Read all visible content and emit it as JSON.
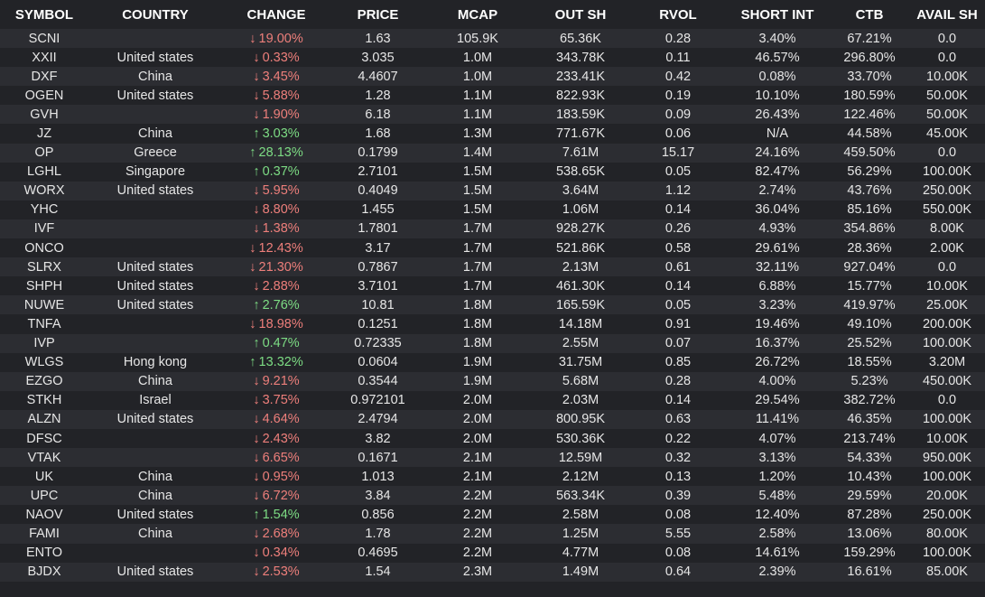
{
  "columns": [
    "SYMBOL",
    "COUNTRY",
    "CHANGE",
    "PRICE",
    "MCAP",
    "OUT SH",
    "RVOL",
    "SHORT INT",
    "CTB",
    "AVAIL SH"
  ],
  "icons": {
    "up": "arrow-up-icon",
    "down": "arrow-down-icon"
  },
  "colors": {
    "up": "#7ddc84",
    "down": "#ee7f7b",
    "row_alt": "#2c2d32",
    "bg": "#222327"
  },
  "rows": [
    {
      "symbol": "SCNI",
      "country": "",
      "direction": "down",
      "change": "19.00%",
      "price": "1.63",
      "mcap": "105.9K",
      "out_sh": "65.36K",
      "rvol": "0.28",
      "short_int": "3.40%",
      "ctb": "67.21%",
      "avail_sh": "0.0"
    },
    {
      "symbol": "XXII",
      "country": "United states",
      "direction": "down",
      "change": "0.33%",
      "price": "3.035",
      "mcap": "1.0M",
      "out_sh": "343.78K",
      "rvol": "0.11",
      "short_int": "46.57%",
      "ctb": "296.80%",
      "avail_sh": "0.0"
    },
    {
      "symbol": "DXF",
      "country": "China",
      "direction": "down",
      "change": "3.45%",
      "price": "4.4607",
      "mcap": "1.0M",
      "out_sh": "233.41K",
      "rvol": "0.42",
      "short_int": "0.08%",
      "ctb": "33.70%",
      "avail_sh": "10.00K"
    },
    {
      "symbol": "OGEN",
      "country": "United states",
      "direction": "down",
      "change": "5.88%",
      "price": "1.28",
      "mcap": "1.1M",
      "out_sh": "822.93K",
      "rvol": "0.19",
      "short_int": "10.10%",
      "ctb": "180.59%",
      "avail_sh": "50.00K"
    },
    {
      "symbol": "GVH",
      "country": "",
      "direction": "down",
      "change": "1.90%",
      "price": "6.18",
      "mcap": "1.1M",
      "out_sh": "183.59K",
      "rvol": "0.09",
      "short_int": "26.43%",
      "ctb": "122.46%",
      "avail_sh": "50.00K"
    },
    {
      "symbol": "JZ",
      "country": "China",
      "direction": "up",
      "change": "3.03%",
      "price": "1.68",
      "mcap": "1.3M",
      "out_sh": "771.67K",
      "rvol": "0.06",
      "short_int": "N/A",
      "ctb": "44.58%",
      "avail_sh": "45.00K"
    },
    {
      "symbol": "OP",
      "country": "Greece",
      "direction": "up",
      "change": "28.13%",
      "price": "0.1799",
      "mcap": "1.4M",
      "out_sh": "7.61M",
      "rvol": "15.17",
      "short_int": "24.16%",
      "ctb": "459.50%",
      "avail_sh": "0.0"
    },
    {
      "symbol": "LGHL",
      "country": "Singapore",
      "direction": "up",
      "change": "0.37%",
      "price": "2.7101",
      "mcap": "1.5M",
      "out_sh": "538.65K",
      "rvol": "0.05",
      "short_int": "82.47%",
      "ctb": "56.29%",
      "avail_sh": "100.00K"
    },
    {
      "symbol": "WORX",
      "country": "United states",
      "direction": "down",
      "change": "5.95%",
      "price": "0.4049",
      "mcap": "1.5M",
      "out_sh": "3.64M",
      "rvol": "1.12",
      "short_int": "2.74%",
      "ctb": "43.76%",
      "avail_sh": "250.00K"
    },
    {
      "symbol": "YHC",
      "country": "",
      "direction": "down",
      "change": "8.80%",
      "price": "1.455",
      "mcap": "1.5M",
      "out_sh": "1.06M",
      "rvol": "0.14",
      "short_int": "36.04%",
      "ctb": "85.16%",
      "avail_sh": "550.00K"
    },
    {
      "symbol": "IVF",
      "country": "",
      "direction": "down",
      "change": "1.38%",
      "price": "1.7801",
      "mcap": "1.7M",
      "out_sh": "928.27K",
      "rvol": "0.26",
      "short_int": "4.93%",
      "ctb": "354.86%",
      "avail_sh": "8.00K"
    },
    {
      "symbol": "ONCO",
      "country": "",
      "direction": "down",
      "change": "12.43%",
      "price": "3.17",
      "mcap": "1.7M",
      "out_sh": "521.86K",
      "rvol": "0.58",
      "short_int": "29.61%",
      "ctb": "28.36%",
      "avail_sh": "2.00K"
    },
    {
      "symbol": "SLRX",
      "country": "United states",
      "direction": "down",
      "change": "21.30%",
      "price": "0.7867",
      "mcap": "1.7M",
      "out_sh": "2.13M",
      "rvol": "0.61",
      "short_int": "32.11%",
      "ctb": "927.04%",
      "avail_sh": "0.0"
    },
    {
      "symbol": "SHPH",
      "country": "United states",
      "direction": "down",
      "change": "2.88%",
      "price": "3.7101",
      "mcap": "1.7M",
      "out_sh": "461.30K",
      "rvol": "0.14",
      "short_int": "6.88%",
      "ctb": "15.77%",
      "avail_sh": "10.00K"
    },
    {
      "symbol": "NUWE",
      "country": "United states",
      "direction": "up",
      "change": "2.76%",
      "price": "10.81",
      "mcap": "1.8M",
      "out_sh": "165.59K",
      "rvol": "0.05",
      "short_int": "3.23%",
      "ctb": "419.97%",
      "avail_sh": "25.00K"
    },
    {
      "symbol": "TNFA",
      "country": "",
      "direction": "down",
      "change": "18.98%",
      "price": "0.1251",
      "mcap": "1.8M",
      "out_sh": "14.18M",
      "rvol": "0.91",
      "short_int": "19.46%",
      "ctb": "49.10%",
      "avail_sh": "200.00K"
    },
    {
      "symbol": "IVP",
      "country": "",
      "direction": "up",
      "change": "0.47%",
      "price": "0.72335",
      "mcap": "1.8M",
      "out_sh": "2.55M",
      "rvol": "0.07",
      "short_int": "16.37%",
      "ctb": "25.52%",
      "avail_sh": "100.00K"
    },
    {
      "symbol": "WLGS",
      "country": "Hong kong",
      "direction": "up",
      "change": "13.32%",
      "price": "0.0604",
      "mcap": "1.9M",
      "out_sh": "31.75M",
      "rvol": "0.85",
      "short_int": "26.72%",
      "ctb": "18.55%",
      "avail_sh": "3.20M"
    },
    {
      "symbol": "EZGO",
      "country": "China",
      "direction": "down",
      "change": "9.21%",
      "price": "0.3544",
      "mcap": "1.9M",
      "out_sh": "5.68M",
      "rvol": "0.28",
      "short_int": "4.00%",
      "ctb": "5.23%",
      "avail_sh": "450.00K"
    },
    {
      "symbol": "STKH",
      "country": "Israel",
      "direction": "down",
      "change": "3.75%",
      "price": "0.972101",
      "mcap": "2.0M",
      "out_sh": "2.03M",
      "rvol": "0.14",
      "short_int": "29.54%",
      "ctb": "382.72%",
      "avail_sh": "0.0"
    },
    {
      "symbol": "ALZN",
      "country": "United states",
      "direction": "down",
      "change": "4.64%",
      "price": "2.4794",
      "mcap": "2.0M",
      "out_sh": "800.95K",
      "rvol": "0.63",
      "short_int": "11.41%",
      "ctb": "46.35%",
      "avail_sh": "100.00K"
    },
    {
      "symbol": "DFSC",
      "country": "",
      "direction": "down",
      "change": "2.43%",
      "price": "3.82",
      "mcap": "2.0M",
      "out_sh": "530.36K",
      "rvol": "0.22",
      "short_int": "4.07%",
      "ctb": "213.74%",
      "avail_sh": "10.00K"
    },
    {
      "symbol": "VTAK",
      "country": "",
      "direction": "down",
      "change": "6.65%",
      "price": "0.1671",
      "mcap": "2.1M",
      "out_sh": "12.59M",
      "rvol": "0.32",
      "short_int": "3.13%",
      "ctb": "54.33%",
      "avail_sh": "950.00K"
    },
    {
      "symbol": "UK",
      "country": "China",
      "direction": "down",
      "change": "0.95%",
      "price": "1.013",
      "mcap": "2.1M",
      "out_sh": "2.12M",
      "rvol": "0.13",
      "short_int": "1.20%",
      "ctb": "10.43%",
      "avail_sh": "100.00K"
    },
    {
      "symbol": "UPC",
      "country": "China",
      "direction": "down",
      "change": "6.72%",
      "price": "3.84",
      "mcap": "2.2M",
      "out_sh": "563.34K",
      "rvol": "0.39",
      "short_int": "5.48%",
      "ctb": "29.59%",
      "avail_sh": "20.00K"
    },
    {
      "symbol": "NAOV",
      "country": "United states",
      "direction": "up",
      "change": "1.54%",
      "price": "0.856",
      "mcap": "2.2M",
      "out_sh": "2.58M",
      "rvol": "0.08",
      "short_int": "12.40%",
      "ctb": "87.28%",
      "avail_sh": "250.00K"
    },
    {
      "symbol": "FAMI",
      "country": "China",
      "direction": "down",
      "change": "2.68%",
      "price": "1.78",
      "mcap": "2.2M",
      "out_sh": "1.25M",
      "rvol": "5.55",
      "short_int": "2.58%",
      "ctb": "13.06%",
      "avail_sh": "80.00K"
    },
    {
      "symbol": "ENTO",
      "country": "",
      "direction": "down",
      "change": "0.34%",
      "price": "0.4695",
      "mcap": "2.2M",
      "out_sh": "4.77M",
      "rvol": "0.08",
      "short_int": "14.61%",
      "ctb": "159.29%",
      "avail_sh": "100.00K"
    },
    {
      "symbol": "BJDX",
      "country": "United states",
      "direction": "down",
      "change": "2.53%",
      "price": "1.54",
      "mcap": "2.3M",
      "out_sh": "1.49M",
      "rvol": "0.64",
      "short_int": "2.39%",
      "ctb": "16.61%",
      "avail_sh": "85.00K"
    }
  ]
}
